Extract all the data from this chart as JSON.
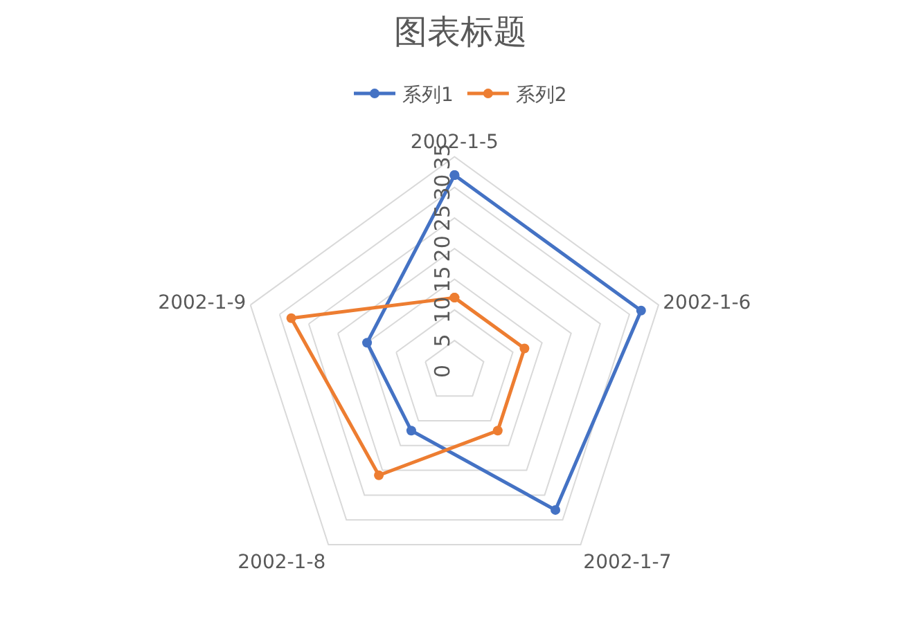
{
  "chart_data": {
    "type": "radar",
    "title": "图表标题",
    "categories": [
      "2002-1-5",
      "2002-1-6",
      "2002-1-7",
      "2002-1-8",
      "2002-1-9"
    ],
    "series": [
      {
        "name": "系列1",
        "color": "#4472c4",
        "values": [
          32,
          32,
          28,
          12,
          15
        ]
      },
      {
        "name": "系列2",
        "color": "#ed7d31",
        "values": [
          12,
          12,
          12,
          21,
          28
        ]
      }
    ],
    "ylim": [
      0,
      35
    ],
    "yticks": [
      0,
      5,
      10,
      15,
      20,
      25,
      30,
      35
    ],
    "grid": true,
    "legend": "top",
    "marker": "circle",
    "line_style": "solid"
  }
}
